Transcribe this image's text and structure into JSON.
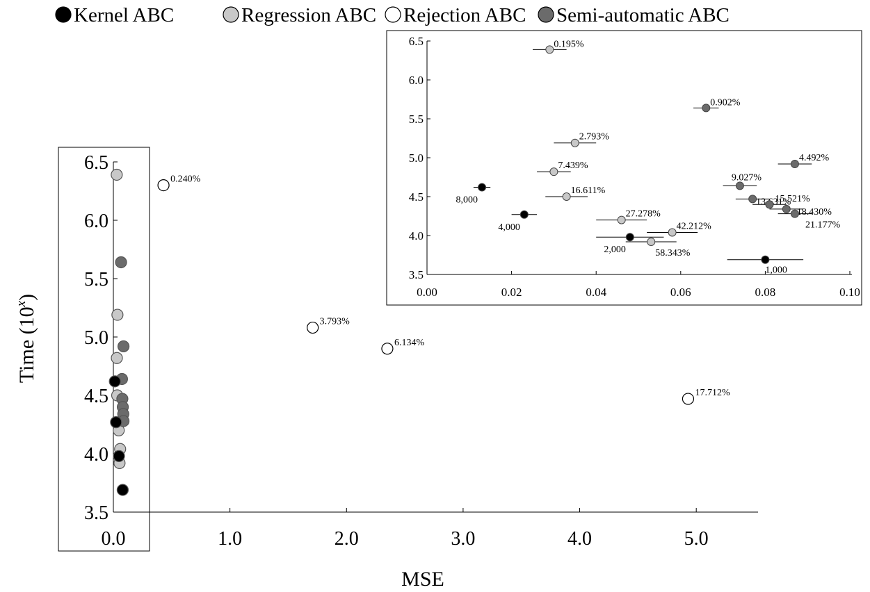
{
  "chart_data": [
    {
      "type": "scatter",
      "title": "",
      "xlabel": "MSE",
      "ylabel": "Time (10",
      "ylabel_superscript": "x",
      "ylabel_suffix": ")",
      "xlim": [
        0.0,
        5.5
      ],
      "ylim": [
        3.5,
        6.5
      ],
      "xticks": [
        "0.0",
        "1.0",
        "2.0",
        "3.0",
        "4.0",
        "5.0"
      ],
      "yticks": [
        "3.5",
        "4.0",
        "4.5",
        "5.0",
        "5.5",
        "6.0",
        "6.5"
      ],
      "grid": false,
      "legend": "top",
      "series": [
        {
          "name": "Kernel ABC",
          "color": "#000000",
          "points": [
            {
              "x": 0.013,
              "y": 4.62
            },
            {
              "x": 0.023,
              "y": 4.27
            },
            {
              "x": 0.048,
              "y": 3.98
            },
            {
              "x": 0.08,
              "y": 3.69
            }
          ]
        },
        {
          "name": "Regression ABC",
          "color": "#c8c8c8",
          "points": [
            {
              "x": 0.029,
              "y": 6.39
            },
            {
              "x": 0.035,
              "y": 5.19
            },
            {
              "x": 0.03,
              "y": 4.82
            },
            {
              "x": 0.033,
              "y": 4.5
            },
            {
              "x": 0.046,
              "y": 4.2
            },
            {
              "x": 0.058,
              "y": 4.04
            },
            {
              "x": 0.053,
              "y": 3.92
            }
          ]
        },
        {
          "name": "Rejection ABC",
          "color": "#ffffff",
          "points": [
            {
              "x": 0.43,
              "y": 6.3,
              "label": "0.240%"
            },
            {
              "x": 1.71,
              "y": 5.08,
              "label": "3.793%"
            },
            {
              "x": 2.35,
              "y": 4.9,
              "label": "6.134%"
            },
            {
              "x": 4.93,
              "y": 4.47,
              "label": "17.712%"
            }
          ]
        },
        {
          "name": "Semi-automatic ABC",
          "color": "#6b6b6b",
          "points": [
            {
              "x": 0.066,
              "y": 5.64
            },
            {
              "x": 0.087,
              "y": 4.92
            },
            {
              "x": 0.074,
              "y": 4.64
            },
            {
              "x": 0.077,
              "y": 4.47
            },
            {
              "x": 0.081,
              "y": 4.4
            },
            {
              "x": 0.085,
              "y": 4.34
            },
            {
              "x": 0.087,
              "y": 4.28
            }
          ]
        }
      ]
    },
    {
      "type": "scatter",
      "title": "",
      "xlabel": "",
      "ylabel": "",
      "xlim": [
        0.0,
        0.1
      ],
      "ylim": [
        3.5,
        6.5
      ],
      "xticks": [
        "0.00",
        "0.02",
        "0.04",
        "0.06",
        "0.08",
        "0.10"
      ],
      "yticks": [
        "3.5",
        "4.0",
        "4.5",
        "5.0",
        "5.5",
        "6.0",
        "6.5"
      ],
      "grid": false,
      "series": [
        {
          "name": "Kernel ABC",
          "color": "#000000",
          "points": [
            {
              "x": 0.013,
              "y": 4.62,
              "err": 0.002,
              "label": "8,000"
            },
            {
              "x": 0.023,
              "y": 4.27,
              "err": 0.003,
              "label": "4,000"
            },
            {
              "x": 0.048,
              "y": 3.98,
              "err": 0.008,
              "label": "2,000"
            },
            {
              "x": 0.08,
              "y": 3.69,
              "err": 0.009,
              "label": "1,000"
            }
          ]
        },
        {
          "name": "Regression ABC",
          "color": "#c8c8c8",
          "points": [
            {
              "x": 0.029,
              "y": 6.39,
              "err": 0.004,
              "label": "0.195%"
            },
            {
              "x": 0.035,
              "y": 5.19,
              "err": 0.005,
              "label": "2.793%"
            },
            {
              "x": 0.03,
              "y": 4.82,
              "err": 0.004,
              "label": "7.439%"
            },
            {
              "x": 0.033,
              "y": 4.5,
              "err": 0.005,
              "label": "16.611%"
            },
            {
              "x": 0.046,
              "y": 4.2,
              "err": 0.006,
              "label": "27.278%"
            },
            {
              "x": 0.058,
              "y": 4.04,
              "err": 0.006,
              "label": "42.212%"
            },
            {
              "x": 0.053,
              "y": 3.92,
              "err": 0.006,
              "label": "58.343%"
            }
          ]
        },
        {
          "name": "Semi-automatic ABC",
          "color": "#6b6b6b",
          "points": [
            {
              "x": 0.066,
              "y": 5.64,
              "err": 0.003,
              "label": "0.902%"
            },
            {
              "x": 0.087,
              "y": 4.92,
              "err": 0.004,
              "label": "4.492%"
            },
            {
              "x": 0.074,
              "y": 4.64,
              "err": 0.004,
              "label": "9.027%"
            },
            {
              "x": 0.077,
              "y": 4.47,
              "err": 0.004,
              "label": "13.631%"
            },
            {
              "x": 0.081,
              "y": 4.4,
              "err": 0.004,
              "label": "15.521%"
            },
            {
              "x": 0.085,
              "y": 4.34,
              "err": 0.004,
              "label": "18.430%"
            },
            {
              "x": 0.087,
              "y": 4.28,
              "err": 0.004,
              "label": "21.177%"
            }
          ]
        }
      ]
    }
  ]
}
